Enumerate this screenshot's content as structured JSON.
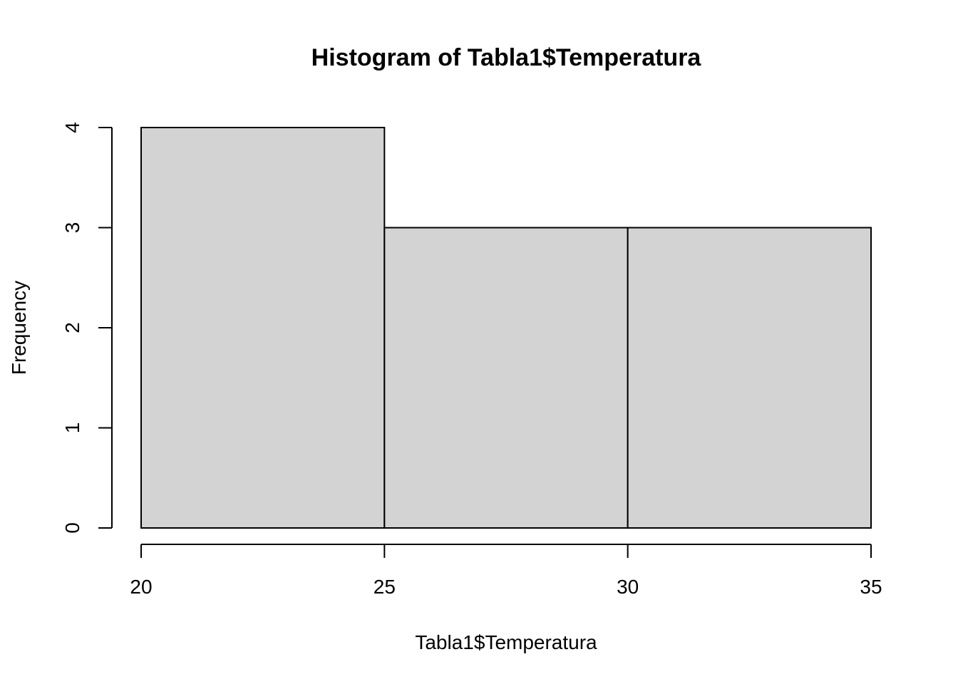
{
  "chart_data": {
    "type": "bar",
    "title": "Histogram of Tabla1$Temperatura",
    "xlabel": "Tabla1$Temperatura",
    "ylabel": "Frequency",
    "bins": [
      {
        "start": 20,
        "end": 25,
        "count": 4
      },
      {
        "start": 25,
        "end": 30,
        "count": 3
      },
      {
        "start": 30,
        "end": 35,
        "count": 3
      }
    ],
    "xticks": [
      "20",
      "25",
      "30",
      "35"
    ],
    "yticks": [
      "0",
      "1",
      "2",
      "3",
      "4"
    ],
    "xlim": [
      20,
      35
    ],
    "ylim": [
      0,
      4
    ],
    "grid": false,
    "bar_fill": "#d3d3d3",
    "bar_stroke": "#000000"
  }
}
